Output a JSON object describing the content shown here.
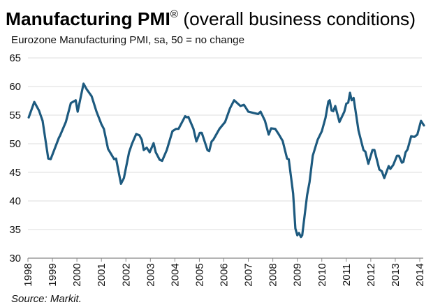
{
  "chart_data": {
    "type": "line",
    "title": "Manufacturing PMI",
    "title_mark": "®",
    "title_suffix": " (overall business conditions)",
    "subtitle": "Eurozone Manufacturing PMI, sa, 50 = no change",
    "source": "Source: Markit.",
    "xlabel": "",
    "ylabel": "",
    "xlim": [
      1998,
      2014
    ],
    "ylim": [
      30,
      65
    ],
    "yticks": [
      30,
      35,
      40,
      45,
      50,
      55,
      60,
      65
    ],
    "xticks": [
      "1998",
      "1999",
      "2000",
      "2001",
      "2002",
      "2003",
      "2004",
      "2005",
      "2006",
      "2007",
      "2008",
      "2009",
      "2010",
      "2011",
      "2012",
      "2013",
      "2014"
    ],
    "grid": true,
    "line_color": "#1d5a7f",
    "series": [
      {
        "name": "Eurozone Manufacturing PMI",
        "x": [
          1998.03,
          1998.26,
          1998.45,
          1998.6,
          1998.83,
          1998.93,
          1999.27,
          1999.3,
          1999.55,
          1999.75,
          1999.95,
          2000.03,
          2000.27,
          2000.4,
          2000.6,
          2000.8,
          2001.0,
          2001.1,
          2001.27,
          2001.52,
          2001.6,
          2001.8,
          2001.92,
          2002.13,
          2002.25,
          2002.42,
          2002.55,
          2002.65,
          2002.73,
          2002.85,
          2002.97,
          2003.13,
          2003.22,
          2003.38,
          2003.48,
          2003.67,
          2003.9,
          2004.05,
          2004.15,
          2004.42,
          2004.5,
          2004.55,
          2004.76,
          2004.88,
          2005.02,
          2005.1,
          2005.33,
          2005.4,
          2005.5,
          2005.57,
          2005.82,
          2006.05,
          2006.25,
          2006.42,
          2006.68,
          2006.82,
          2007.0,
          2007.4,
          2007.5,
          2007.68,
          2007.83,
          2007.93,
          2008.1,
          2008.25,
          2008.4,
          2008.58,
          2008.65,
          2008.83,
          2008.92,
          2009.0,
          2009.07,
          2009.15,
          2009.2,
          2009.4,
          2009.5,
          2009.63,
          2009.83,
          2010.0,
          2010.15,
          2010.27,
          2010.32,
          2010.4,
          2010.47,
          2010.55,
          2010.72,
          2010.92,
          2011.0,
          2011.08,
          2011.15,
          2011.22,
          2011.3,
          2011.5,
          2011.7,
          2011.78,
          2011.9,
          2012.07,
          2012.15,
          2012.35,
          2012.45,
          2012.55,
          2012.73,
          2012.8,
          2012.92,
          2013.07,
          2013.15,
          2013.27,
          2013.33,
          2013.42,
          2013.5,
          2013.65,
          2013.78,
          2013.9,
          2014.05,
          2014.17
        ],
        "y": [
          54.6,
          57.3,
          55.8,
          54.0,
          47.4,
          47.3,
          51.1,
          51.3,
          53.8,
          57.1,
          57.6,
          55.6,
          60.5,
          59.5,
          58.3,
          55.6,
          53.4,
          52.6,
          49.1,
          47.3,
          47.4,
          43.0,
          44.0,
          48.5,
          50.0,
          51.7,
          51.5,
          50.7,
          48.9,
          49.3,
          48.5,
          50.1,
          48.5,
          47.2,
          47.0,
          48.9,
          52.2,
          52.6,
          52.6,
          54.8,
          54.6,
          54.7,
          52.6,
          50.4,
          51.9,
          51.9,
          48.9,
          48.7,
          50.4,
          50.7,
          52.6,
          53.8,
          56.2,
          57.6,
          56.6,
          56.8,
          55.6,
          55.2,
          55.6,
          54.0,
          51.6,
          52.7,
          52.6,
          51.6,
          50.5,
          47.4,
          47.3,
          41.3,
          35.2,
          34.0,
          34.4,
          33.7,
          34.0,
          41.0,
          43.3,
          47.9,
          50.7,
          52.2,
          54.5,
          57.4,
          57.6,
          55.8,
          55.7,
          56.6,
          53.8,
          55.6,
          57.0,
          57.2,
          58.9,
          57.6,
          58.0,
          52.3,
          48.9,
          48.6,
          46.5,
          48.9,
          48.9,
          45.5,
          45.2,
          44.0,
          46.1,
          45.6,
          46.3,
          47.9,
          47.9,
          46.7,
          46.8,
          48.5,
          49.0,
          51.3,
          51.2,
          51.6,
          54.0,
          53.2
        ]
      }
    ]
  }
}
